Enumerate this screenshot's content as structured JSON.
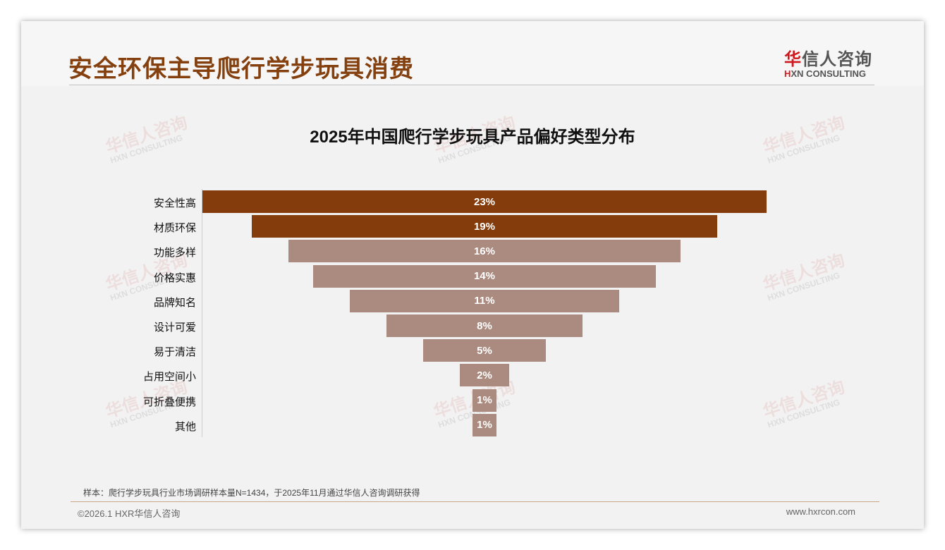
{
  "header": {
    "title": "安全环保主导爬行学步玩具消费",
    "logo_cn_first": "华",
    "logo_cn_rest": "信人咨询",
    "logo_en_mark": "H",
    "logo_en_rest": "XN CONSULTING"
  },
  "watermark": {
    "cn": "华信人咨询",
    "en": "HXN CONSULTING"
  },
  "chart_data": {
    "type": "bar",
    "subtype": "funnel",
    "title": "2025年中国爬行学步玩具产品偏好类型分布",
    "categories": [
      "安全性高",
      "材质环保",
      "功能多样",
      "价格实惠",
      "品牌知名",
      "设计可爱",
      "易于清洁",
      "占用空间小",
      "可折叠便携",
      "其他"
    ],
    "values": [
      23,
      19,
      16,
      14,
      11,
      8,
      5,
      2,
      1,
      1
    ],
    "labels": [
      "23%",
      "19%",
      "16%",
      "14%",
      "11%",
      "8%",
      "5%",
      "2%",
      "1%",
      "1%"
    ],
    "colors": [
      "#843c0c",
      "#843c0c",
      "#ab8b80",
      "#ab8b80",
      "#ab8b80",
      "#ab8b80",
      "#ab8b80",
      "#ab8b80",
      "#ab8b80",
      "#ab8b80"
    ],
    "unit": "%"
  },
  "footer": {
    "note": "样本：爬行学步玩具行业市场调研样本量N=1434，于2025年11月通过华信人咨询调研获得",
    "copyright": "©2026.1 HXR华信人咨询",
    "url": "www.hxrcon.com"
  }
}
